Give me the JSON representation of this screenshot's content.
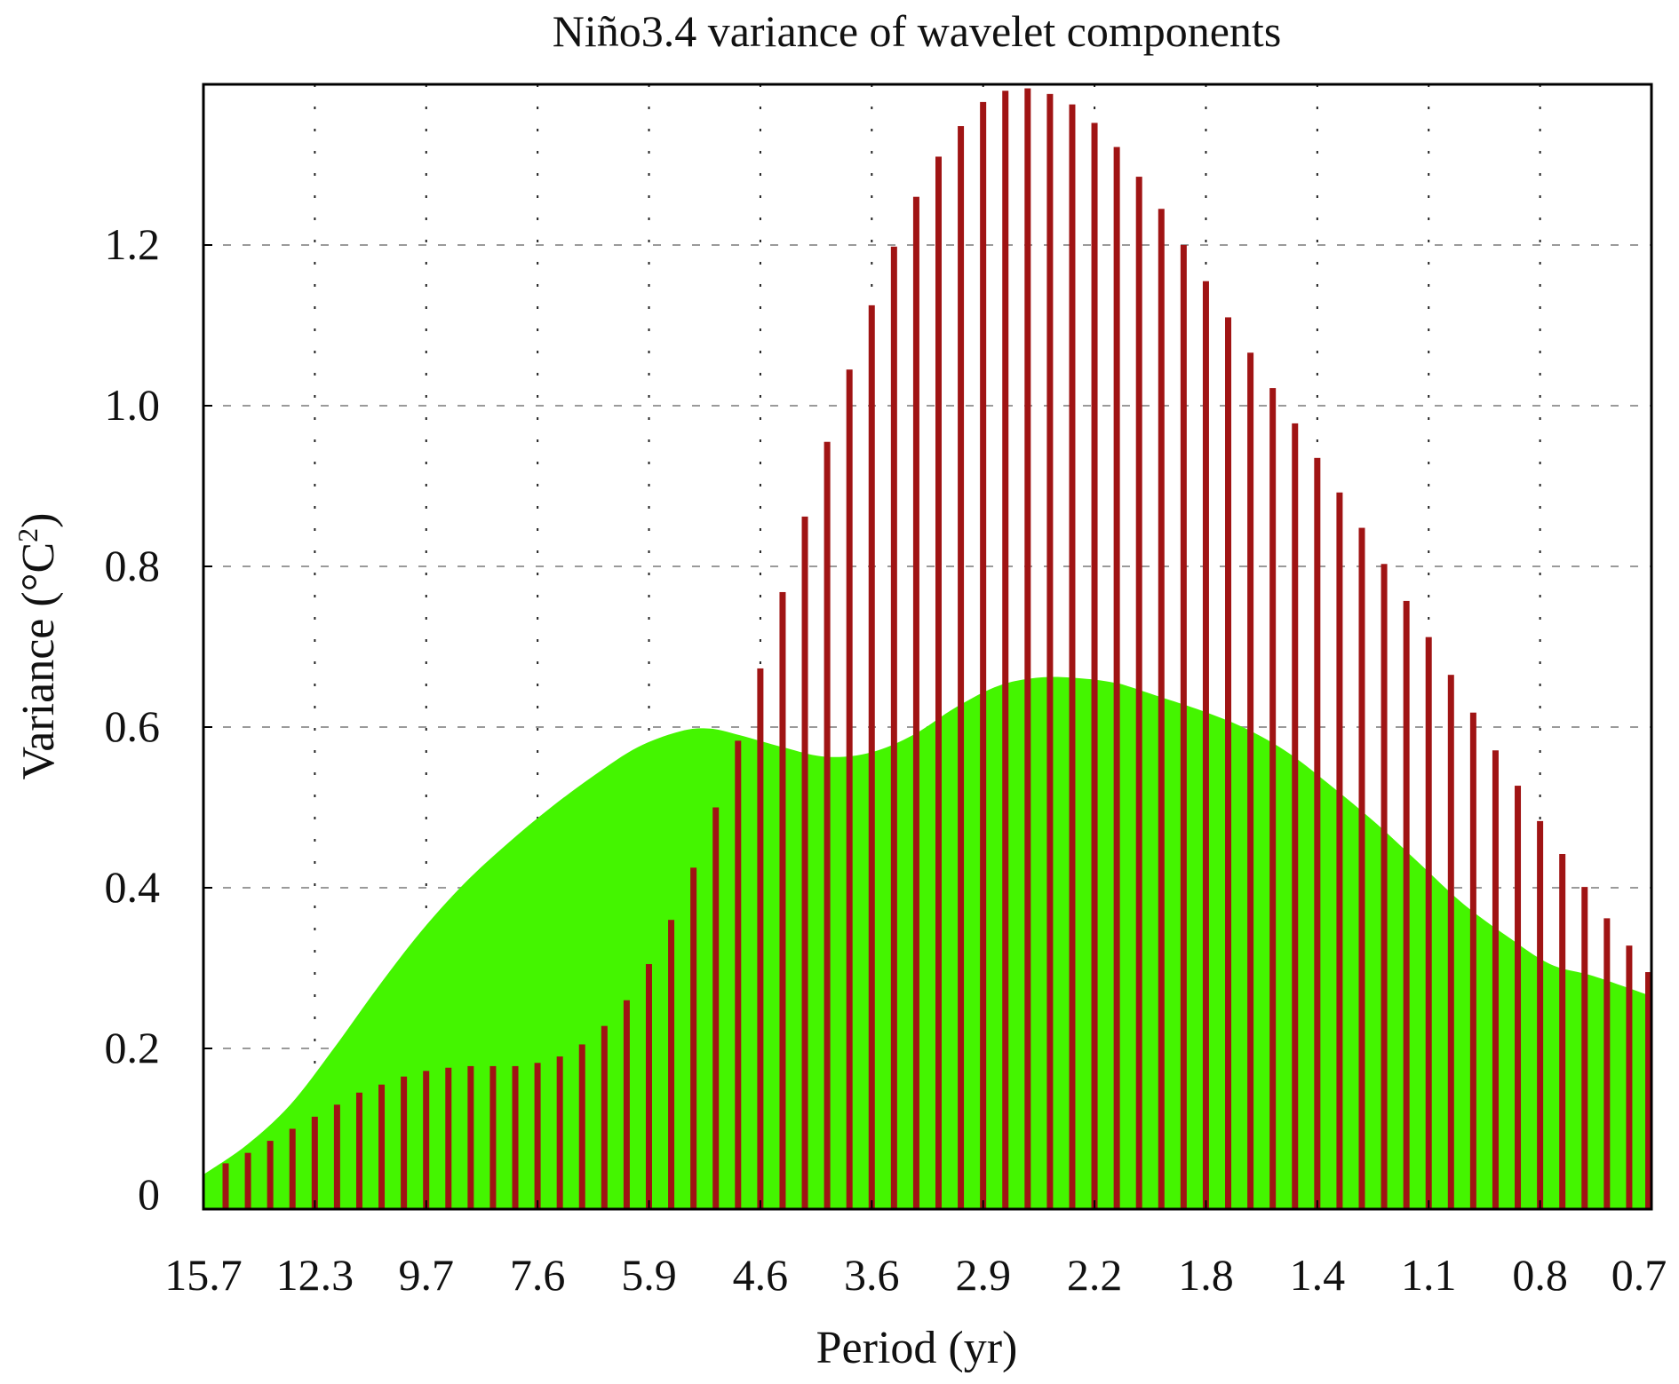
{
  "chart_data": {
    "type": "bar",
    "title": "Niño3.4 variance of wavelet components",
    "xlabel": "Period (yr)",
    "ylabel_main": "Variance  (°C",
    "ylabel_sup": "2",
    "ylabel_close": ")",
    "ylim": [
      0,
      1.4
    ],
    "y_ticks": [
      {
        "value": 0,
        "label": "0"
      },
      {
        "value": 0.2,
        "label": "0.2"
      },
      {
        "value": 0.4,
        "label": "0.4"
      },
      {
        "value": 0.6,
        "label": "0.6"
      },
      {
        "value": 0.8,
        "label": "0.8"
      },
      {
        "value": 1.0,
        "label": "1.0"
      },
      {
        "value": 1.2,
        "label": "1.2"
      }
    ],
    "x_ticks": [
      "15.7",
      "12.3",
      "9.7",
      "7.6",
      "5.9",
      "4.6",
      "3.6",
      "2.9",
      "2.2",
      "1.8",
      "1.4",
      "1.1",
      "0.8",
      "0.7"
    ],
    "grid": true,
    "bar_series": {
      "color": "#a01414",
      "values": [
        0.057,
        0.07,
        0.085,
        0.1,
        0.115,
        0.13,
        0.145,
        0.155,
        0.165,
        0.172,
        0.176,
        0.178,
        0.178,
        0.178,
        0.182,
        0.19,
        0.205,
        0.228,
        0.26,
        0.305,
        0.36,
        0.425,
        0.5,
        0.583,
        0.673,
        0.768,
        0.862,
        0.955,
        1.045,
        1.125,
        1.198,
        1.26,
        1.31,
        1.348,
        1.378,
        1.392,
        1.395,
        1.388,
        1.375,
        1.352,
        1.322,
        1.285,
        1.245,
        1.2,
        1.155,
        1.11,
        1.066,
        1.022,
        0.978,
        0.935,
        0.892,
        0.848,
        0.803,
        0.757,
        0.712,
        0.665,
        0.618,
        0.571,
        0.527,
        0.483,
        0.442,
        0.401,
        0.362,
        0.328,
        0.295
      ]
    },
    "area_series": {
      "color": "#44f500",
      "x_fraction": [
        0,
        0.03,
        0.06,
        0.09,
        0.12,
        0.15,
        0.18,
        0.21,
        0.24,
        0.27,
        0.3,
        0.33,
        0.35,
        0.37,
        0.4,
        0.43,
        0.46,
        0.49,
        0.52,
        0.55,
        0.58,
        0.61,
        0.63,
        0.64,
        0.66,
        0.69,
        0.72,
        0.75,
        0.78,
        0.81,
        0.84,
        0.87,
        0.9,
        0.93,
        0.96,
        1.0
      ],
      "values": [
        0.043,
        0.08,
        0.13,
        0.2,
        0.275,
        0.345,
        0.405,
        0.455,
        0.5,
        0.54,
        0.575,
        0.595,
        0.598,
        0.59,
        0.575,
        0.563,
        0.568,
        0.59,
        0.625,
        0.652,
        0.662,
        0.66,
        0.655,
        0.65,
        0.638,
        0.62,
        0.598,
        0.567,
        0.525,
        0.48,
        0.43,
        0.38,
        0.34,
        0.305,
        0.29,
        0.265
      ]
    }
  }
}
